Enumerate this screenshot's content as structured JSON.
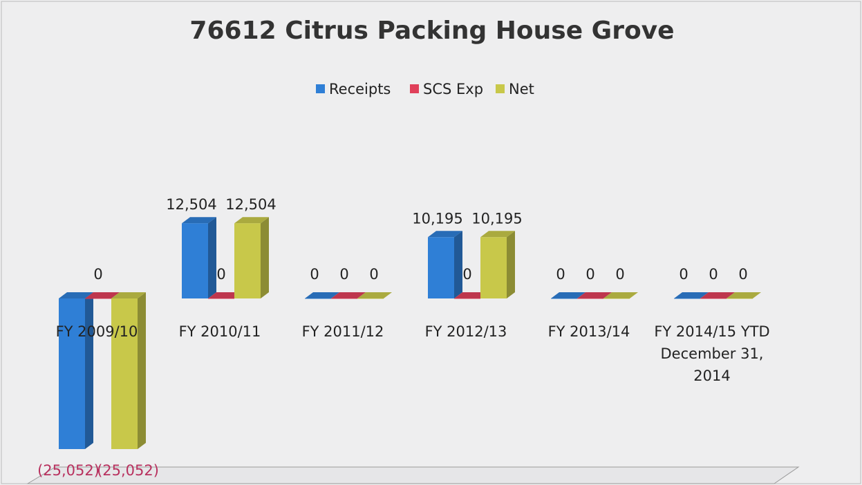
{
  "chart_data": {
    "type": "bar3d",
    "title": "76612 Citrus Packing House Grove",
    "categories": [
      "FY 2009/10",
      "FY 2010/11",
      "FY 2011/12",
      "FY 2012/13",
      "FY 2013/14",
      "FY 2014/15 YTD December 31, 2014"
    ],
    "series": [
      {
        "name": "Receipts",
        "color": "#2f7fd6",
        "values": [
          -25052,
          12504,
          0,
          10195,
          0,
          0
        ],
        "value_labels": [
          "(25,052)",
          "12,504",
          "0",
          "10,195",
          "0",
          "0"
        ]
      },
      {
        "name": "SCS Exp",
        "color": "#e0405a",
        "values": [
          0,
          0,
          0,
          0,
          0,
          0
        ],
        "value_labels": [
          "0",
          "0",
          "0",
          "0",
          "0",
          "0"
        ]
      },
      {
        "name": "Net",
        "color": "#c8c84a",
        "values": [
          -25052,
          12504,
          0,
          10195,
          0,
          0
        ],
        "value_labels": [
          "(25,052)",
          "12,504",
          "0",
          "10,195",
          "0",
          "0"
        ]
      }
    ],
    "legend": "top"
  }
}
